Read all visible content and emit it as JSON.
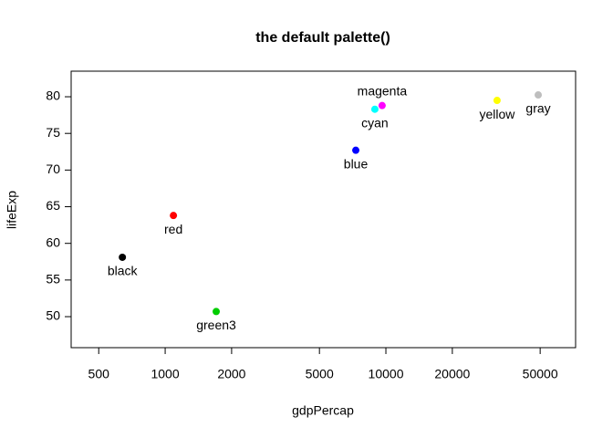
{
  "chart_data": {
    "type": "scatter",
    "title": "the default palette()",
    "x_label": "gdpPercap",
    "y_label": "lifeExp",
    "x": [
      640,
      1090,
      1703,
      7305,
      8913,
      9616,
      31900,
      49000
    ],
    "values": [
      58.1,
      63.8,
      50.7,
      72.7,
      78.3,
      78.8,
      79.5,
      80.25
    ],
    "point_labels": [
      "black",
      "red",
      "green3",
      "blue",
      "cyan",
      "magenta",
      "yellow",
      "gray"
    ],
    "colors": [
      "#000000",
      "#FF0000",
      "#00CD00",
      "#0000FF",
      "#00FFFF",
      "#FF00FF",
      "#FFFF00",
      "#BEBEBE"
    ],
    "xlog": true,
    "xlim": [
      375,
      72367
    ],
    "ylim": [
      45.77,
      83.49
    ],
    "xticks": [
      500,
      1000,
      2000,
      5000,
      10000,
      20000,
      50000
    ],
    "yticks": [
      50,
      55,
      60,
      65,
      70,
      75,
      80
    ]
  }
}
